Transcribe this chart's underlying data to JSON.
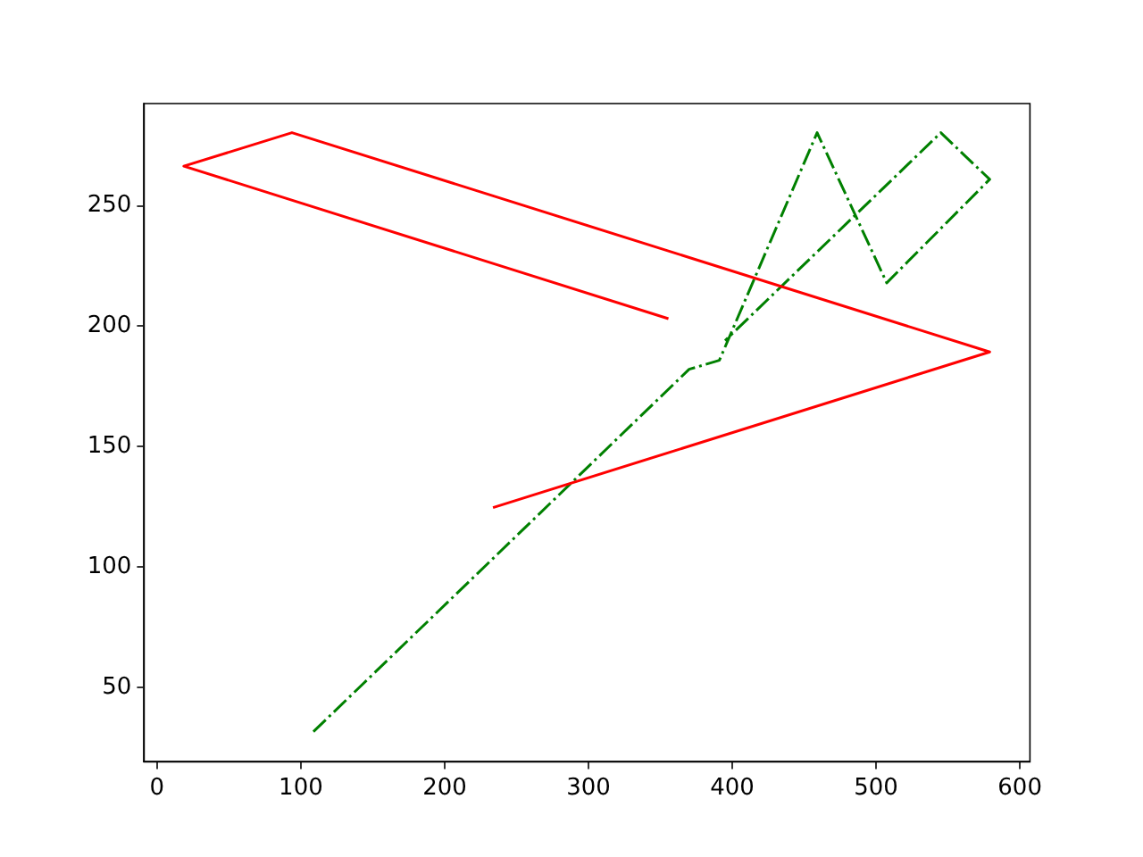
{
  "chart_data": {
    "type": "line",
    "xlim": [
      -9,
      607
    ],
    "ylim": [
      19,
      292.5
    ],
    "xticks": [
      0,
      100,
      200,
      300,
      400,
      500,
      600
    ],
    "yticks": [
      50,
      100,
      150,
      200,
      250
    ],
    "grid": false,
    "legend": false,
    "marker": "none",
    "series": [
      {
        "color": "#ff0000",
        "line_style": "solid",
        "x": [
          355.6,
          18.6,
          93.8,
          579,
          233.6
        ],
        "values": [
          203.1,
          266.5,
          280.4,
          189.3,
          124.6
        ]
      },
      {
        "color": "#008000",
        "line_style": "dashdot",
        "x": [
          108.7,
          370,
          391,
          459,
          507.4,
          579,
          545,
          395
        ],
        "values": [
          31.5,
          182.1,
          185.8,
          280.4,
          218,
          261,
          280.4,
          194
        ]
      }
    ]
  }
}
